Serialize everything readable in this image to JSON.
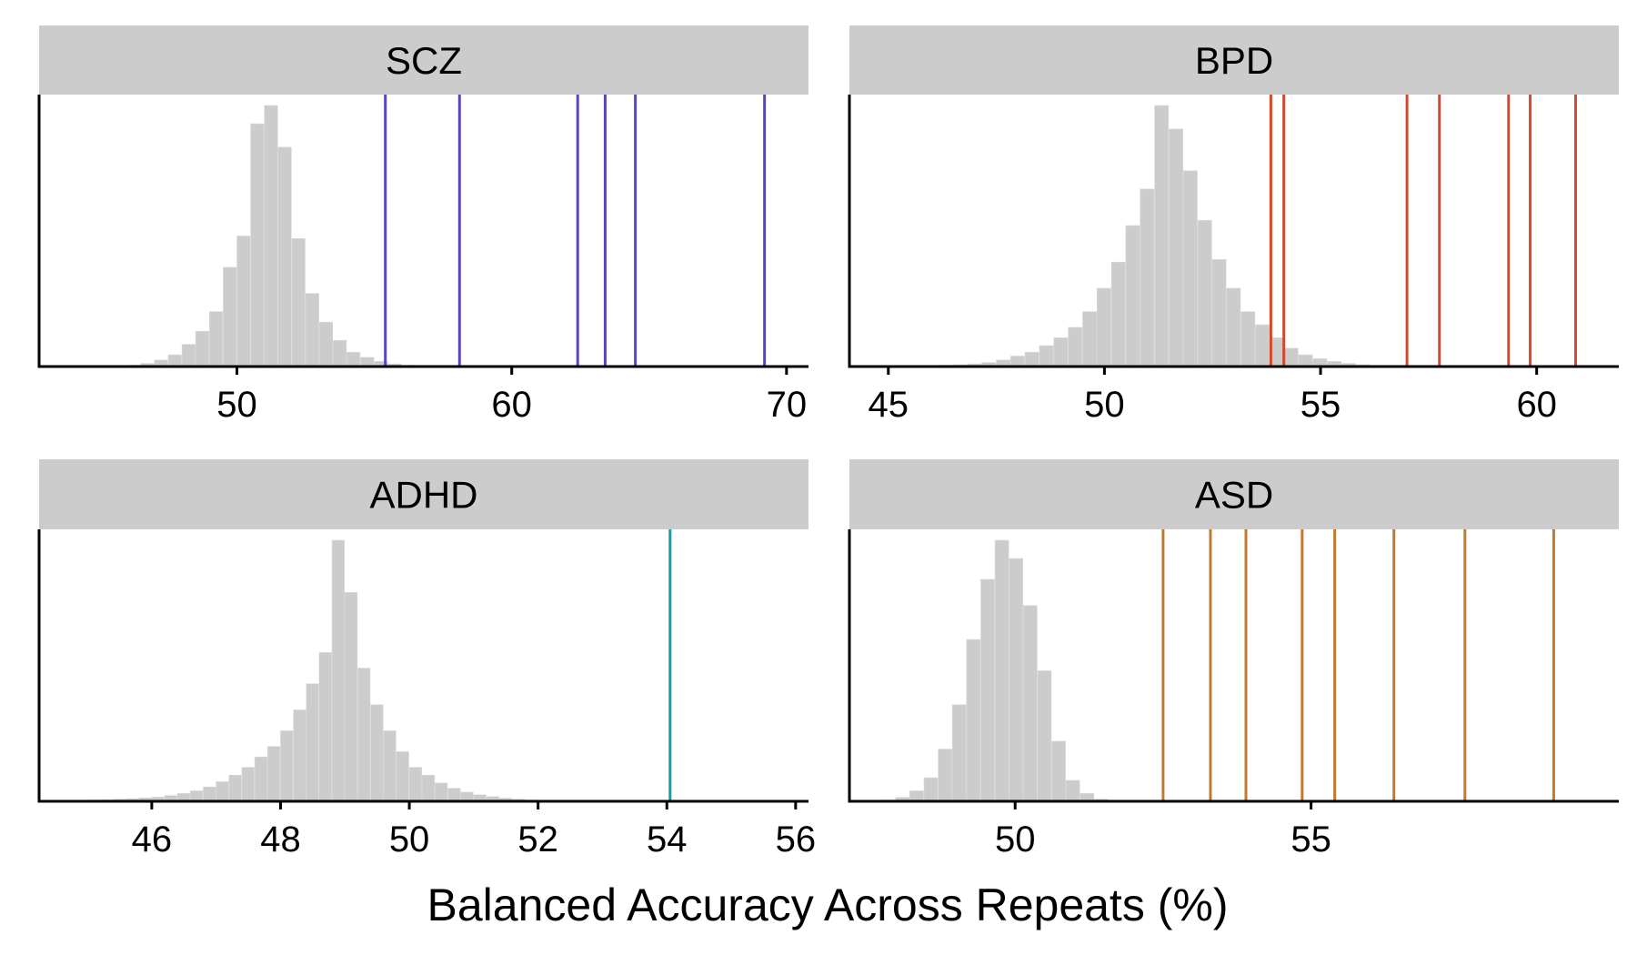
{
  "xlabel": "Balanced Accuracy Across Repeats (%)",
  "null_fill": "#cccccc",
  "strip_fill": "#cccccc",
  "chart_data": [
    {
      "type": "histogram",
      "title": "SCZ",
      "xlim": [
        42.8,
        70.8
      ],
      "xticks": [
        50,
        60,
        70
      ],
      "bin_start": 45.5,
      "bin_width": 0.5,
      "counts": [
        0.3,
        0.5,
        1.2,
        2.5,
        4.5,
        8.5,
        13.5,
        21,
        38,
        50,
        93,
        100,
        84,
        49,
        28,
        17,
        10,
        5.5,
        3.5,
        2,
        1,
        0.5
      ],
      "observed": [
        55.4,
        58.1,
        62.4,
        63.4,
        64.5,
        69.2
      ],
      "line_color": "#5b44c0"
    },
    {
      "type": "histogram",
      "title": "BPD",
      "xlim": [
        44.1,
        61.9
      ],
      "xticks": [
        45,
        50,
        55,
        60
      ],
      "bin_start": 45.5,
      "bin_width": 0.333,
      "counts": [
        0.2,
        0.3,
        0.5,
        0.7,
        1,
        1.5,
        2.5,
        4,
        5.5,
        8,
        11,
        15,
        21,
        30,
        40,
        54,
        68,
        100,
        91,
        75,
        56,
        41,
        30,
        21,
        16,
        11,
        7,
        4.5,
        3,
        2,
        1.2,
        0.7,
        0.4,
        0.2
      ],
      "observed": [
        53.85,
        54.15,
        57.0,
        57.75,
        59.35,
        59.85,
        60.9
      ],
      "line_color": "#d04a2e"
    },
    {
      "type": "histogram",
      "title": "ADHD",
      "xlim": [
        44.25,
        56.2
      ],
      "xticks": [
        46,
        48,
        50,
        52,
        54,
        56
      ],
      "bin_start": 44.6,
      "bin_width": 0.2,
      "counts": [
        0.3,
        0.4,
        0.5,
        0.6,
        0.8,
        1,
        1.3,
        1.6,
        2.2,
        3,
        4,
        5.5,
        7.5,
        10,
        13,
        17,
        21,
        27,
        35,
        45,
        57,
        100,
        80,
        51,
        37,
        27,
        19,
        13,
        10,
        7,
        5,
        3.5,
        2.5,
        1.8,
        1.2,
        0.8,
        0.5,
        0.3,
        0.2,
        0.1,
        0.1
      ],
      "observed": [
        54.05
      ],
      "line_color": "#1a9aa8"
    },
    {
      "type": "histogram",
      "title": "ASD",
      "xlim": [
        47.2,
        60.2
      ],
      "xticks": [
        50,
        55
      ],
      "bin_start": 47.5,
      "bin_width": 0.24,
      "counts": [
        0.2,
        0.5,
        1.5,
        4,
        9,
        20,
        37,
        62,
        85,
        100,
        93,
        75,
        50,
        23,
        8,
        3,
        0.8
      ],
      "observed": [
        52.5,
        53.3,
        53.9,
        54.85,
        55.4,
        56.4,
        57.6,
        59.1
      ],
      "line_color": "#c07a30"
    }
  ]
}
